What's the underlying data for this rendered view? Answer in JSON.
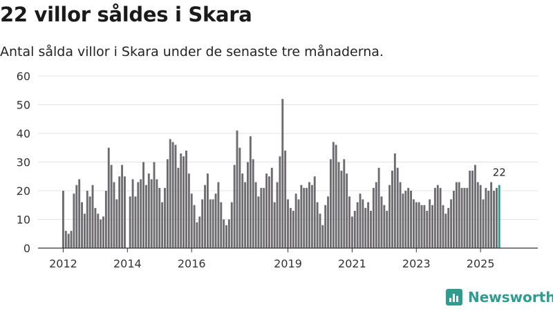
{
  "header": {
    "title": "22 villor såldes i Skara",
    "subtitle": "Antal sålda villor i Skara under de senaste tre månaderna."
  },
  "brand": {
    "name": "Newsworthy",
    "color": "#2e9c8f"
  },
  "chart_data": {
    "type": "bar",
    "title": "22 villor såldes i Skara",
    "xlabel": "",
    "ylabel": "",
    "ylim": [
      0,
      60
    ],
    "yticks": [
      "0",
      "10",
      "20",
      "30",
      "40",
      "50",
      "60"
    ],
    "xticks": [
      {
        "label": "2012",
        "index": 0
      },
      {
        "label": "2014",
        "index": 24
      },
      {
        "label": "2016",
        "index": 48
      },
      {
        "label": "2019",
        "index": 84
      },
      {
        "label": "2021",
        "index": 108
      },
      {
        "label": "2023",
        "index": 132
      },
      {
        "label": "2025",
        "index": 156
      }
    ],
    "bar_color": "#6d6b70",
    "highlight_color": "#2e9c8f",
    "highlight_label": "22",
    "series": [
      {
        "name": "Antal sålda villor",
        "values": [
          20,
          6,
          5,
          6,
          19,
          22,
          24,
          16,
          12,
          20,
          18,
          22,
          14,
          12,
          10,
          11,
          20,
          35,
          29,
          23,
          17,
          25,
          29,
          25,
          0,
          18,
          24,
          18,
          23,
          24,
          30,
          22,
          26,
          24,
          30,
          24,
          21,
          16,
          21,
          31,
          38,
          37,
          36,
          28,
          33,
          32,
          34,
          26,
          19,
          15,
          9,
          11,
          17,
          22,
          26,
          17,
          17,
          19,
          23,
          16,
          10,
          8,
          10,
          16,
          29,
          41,
          35,
          26,
          23,
          30,
          39,
          31,
          23,
          18,
          21,
          21,
          26,
          25,
          28,
          16,
          23,
          32,
          52,
          34,
          17,
          14,
          13,
          19,
          17,
          22,
          21,
          21,
          23,
          22,
          25,
          16,
          12,
          8,
          15,
          18,
          31,
          37,
          36,
          30,
          27,
          31,
          26,
          18,
          11,
          13,
          16,
          19,
          17,
          14,
          16,
          13,
          21,
          23,
          28,
          18,
          15,
          13,
          22,
          27,
          33,
          28,
          23,
          19,
          20,
          21,
          20,
          17,
          16,
          16,
          15,
          15,
          13,
          17,
          15,
          21,
          22,
          21,
          15,
          12,
          14,
          17,
          20,
          23,
          23,
          21,
          21,
          21,
          27,
          27,
          29,
          23,
          22,
          17,
          21,
          20,
          23,
          20,
          21,
          22
        ]
      }
    ]
  }
}
